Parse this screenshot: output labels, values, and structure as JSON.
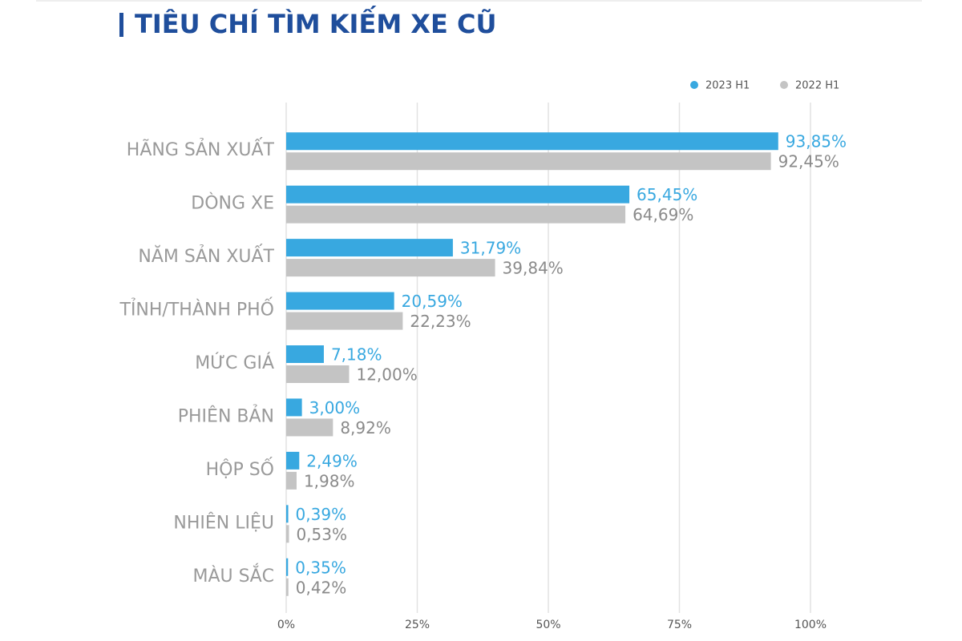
{
  "chart_data": {
    "type": "bar",
    "orientation": "horizontal",
    "title": "TIÊU CHÍ TÌM KIẾM XE CŨ",
    "categories": [
      "HÃNG SẢN XUẤT",
      "DÒNG XE",
      "NĂM SẢN XUẤT",
      "TỈNH/THÀNH PHỐ",
      "MỨC GIÁ",
      "PHIÊN BẢN",
      "HỘP SỐ",
      "NHIÊN LIỆU",
      "MÀU SẮC"
    ],
    "series": [
      {
        "name": "2023 H1",
        "color": "#38a8e0",
        "values": [
          93.85,
          65.45,
          31.79,
          20.59,
          7.18,
          3.0,
          2.49,
          0.39,
          0.35
        ],
        "value_labels": [
          "93,85%",
          "65,45%",
          "31,79%",
          "20,59%",
          "7,18%",
          "3,00%",
          "2,49%",
          "0,39%",
          "0,35%"
        ]
      },
      {
        "name": "2022 H1",
        "color": "#c4c4c4",
        "values": [
          92.45,
          64.69,
          39.84,
          22.23,
          12.0,
          8.92,
          1.98,
          0.53,
          0.42
        ],
        "value_labels": [
          "92,45%",
          "64,69%",
          "39,84%",
          "22,23%",
          "12,00%",
          "8,92%",
          "1,98%",
          "0,53%",
          "0,42%"
        ]
      }
    ],
    "xlim": [
      0,
      100
    ],
    "xticks": [
      {
        "value": 0,
        "label": "0%"
      },
      {
        "value": 25,
        "label": "25%"
      },
      {
        "value": 50,
        "label": "50%"
      },
      {
        "value": 75,
        "label": "75%"
      },
      {
        "value": 100,
        "label": "100%"
      }
    ],
    "grid": true,
    "legend": "top-right"
  }
}
